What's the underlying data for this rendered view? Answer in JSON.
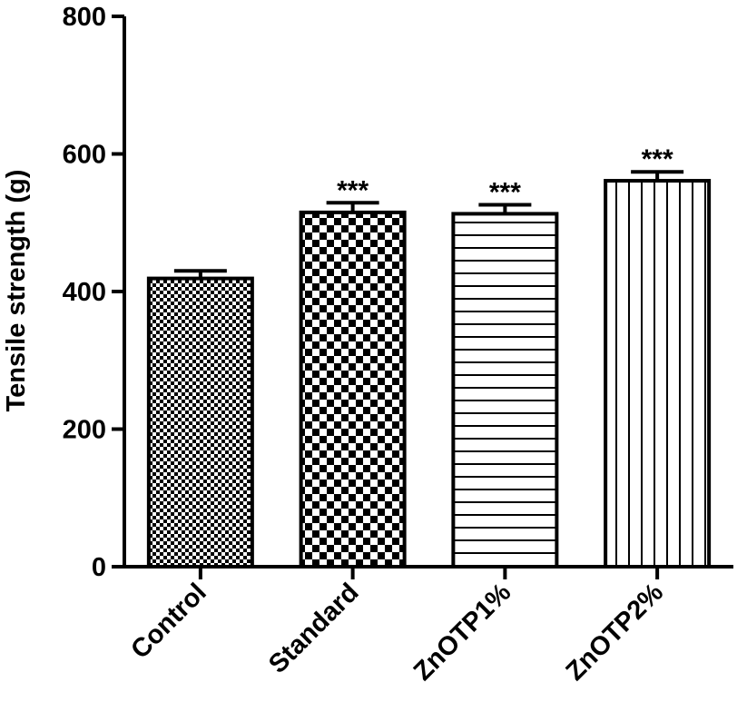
{
  "chart_data": {
    "type": "bar",
    "title": "",
    "xlabel": "",
    "ylabel": "Tensile strength (g)",
    "ylim": [
      0,
      800
    ],
    "yticks": [
      "0",
      "200",
      "400",
      "600",
      "800"
    ],
    "categories": [
      "Control",
      "Standard",
      "ZnOTP1%",
      "ZnOTP2%"
    ],
    "values": [
      419,
      515,
      513,
      561
    ],
    "errors": [
      11,
      14,
      13,
      13
    ],
    "annotations": [
      "",
      "***",
      "***",
      "***"
    ],
    "patterns": [
      "fine-checker",
      "coarse-checker",
      "horizontal-lines",
      "vertical-lines"
    ],
    "colors": {
      "bar_fill": "#ffffff",
      "stroke": "#000000"
    },
    "grid": false,
    "legend": "none"
  }
}
